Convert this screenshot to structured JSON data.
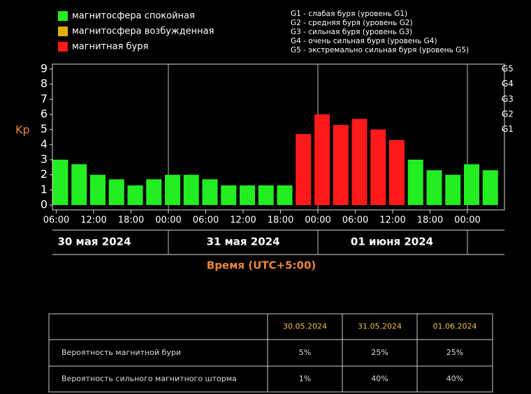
{
  "chart_data": {
    "type": "bar",
    "y_label": "Kp",
    "x_label": "Время (UTC+5:00)",
    "legend": [
      {
        "name": "магнитосфера спокойная",
        "color": "#22ee22"
      },
      {
        "name": "магнитосфера возбужденная",
        "color": "#e0b000"
      },
      {
        "name": "магнитная буря",
        "color": "#ff1a1a"
      }
    ],
    "storm_levels": [
      "G1 - слабая буря (уровень G1)",
      "G2 - средняя буря (уровень G2)",
      "G3 - сильная буря (уровень G3)",
      "G4 - очень сильная буря (уровень G4)",
      "G5 - экстремально сильная буря (уровень G5)"
    ],
    "values": [
      3,
      2.7,
      2,
      1.7,
      1.3,
      1.7,
      2,
      2,
      1.7,
      1.3,
      1.3,
      1.3,
      1.3,
      4.7,
      6,
      5.3,
      5.7,
      5,
      4.3,
      3,
      2.3,
      2,
      2.7,
      2.3
    ],
    "colors": [
      "#22ee22",
      "#22ee22",
      "#22ee22",
      "#22ee22",
      "#22ee22",
      "#22ee22",
      "#22ee22",
      "#22ee22",
      "#22ee22",
      "#22ee22",
      "#22ee22",
      "#22ee22",
      "#22ee22",
      "#ff1a1a",
      "#ff1a1a",
      "#ff1a1a",
      "#ff1a1a",
      "#ff1a1a",
      "#ff1a1a",
      "#22ee22",
      "#22ee22",
      "#22ee22",
      "#22ee22",
      "#22ee22"
    ],
    "ylim": [
      0,
      9
    ],
    "yticks": [
      0,
      1,
      2,
      3,
      4,
      5,
      6,
      7,
      8,
      9
    ],
    "y2ticks": [
      {
        "value": 5,
        "label": "G1"
      },
      {
        "value": 6,
        "label": "G2"
      },
      {
        "value": 7,
        "label": "G3"
      },
      {
        "value": 8,
        "label": "G4"
      },
      {
        "value": 9,
        "label": "G5"
      }
    ],
    "xticks": [
      "06:00",
      "12:00",
      "18:00",
      "00:00",
      "06:00",
      "12:00",
      "18:00",
      "00:00",
      "06:00",
      "12:00",
      "18:00",
      "00:00"
    ],
    "days": [
      "30 мая 2024",
      "31 мая 2024",
      "01 июня 2024"
    ]
  },
  "table": {
    "columns": [
      "30.05.2024",
      "31.05.2024",
      "01.06.2024"
    ],
    "rows": [
      {
        "label": "Вероятность магнитной бури",
        "cells": [
          "5%",
          "25%",
          "25%"
        ]
      },
      {
        "label": "Вероятность сильного магнитного шторма",
        "cells": [
          "1%",
          "40%",
          "40%"
        ]
      }
    ]
  }
}
